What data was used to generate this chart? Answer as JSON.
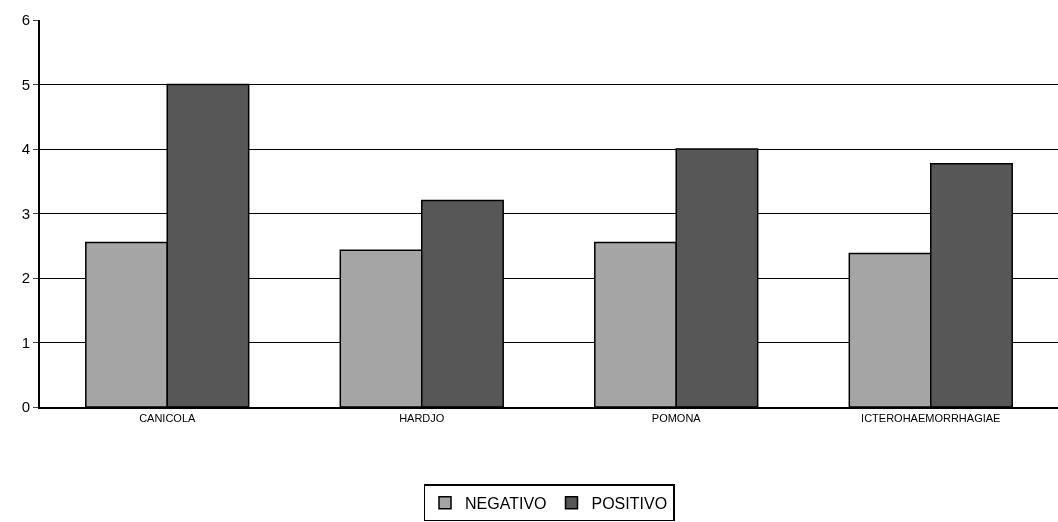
{
  "chart_data": {
    "type": "bar",
    "categories": [
      "CANICOLA",
      "HARDJO",
      "POMONA",
      "ICTEROHAEMORRHAGIAE"
    ],
    "series": [
      {
        "name": "NEGATIVO",
        "color": "#a5a5a5",
        "values": [
          2.55,
          2.43,
          2.55,
          2.38
        ]
      },
      {
        "name": "POSITIVO",
        "color": "#575757",
        "values": [
          5.0,
          3.2,
          4.0,
          3.77
        ]
      }
    ],
    "ylim": [
      0,
      6
    ],
    "yticks": [
      0,
      1,
      2,
      3,
      4,
      5,
      6
    ],
    "grid": "y",
    "legend": "bottom"
  }
}
